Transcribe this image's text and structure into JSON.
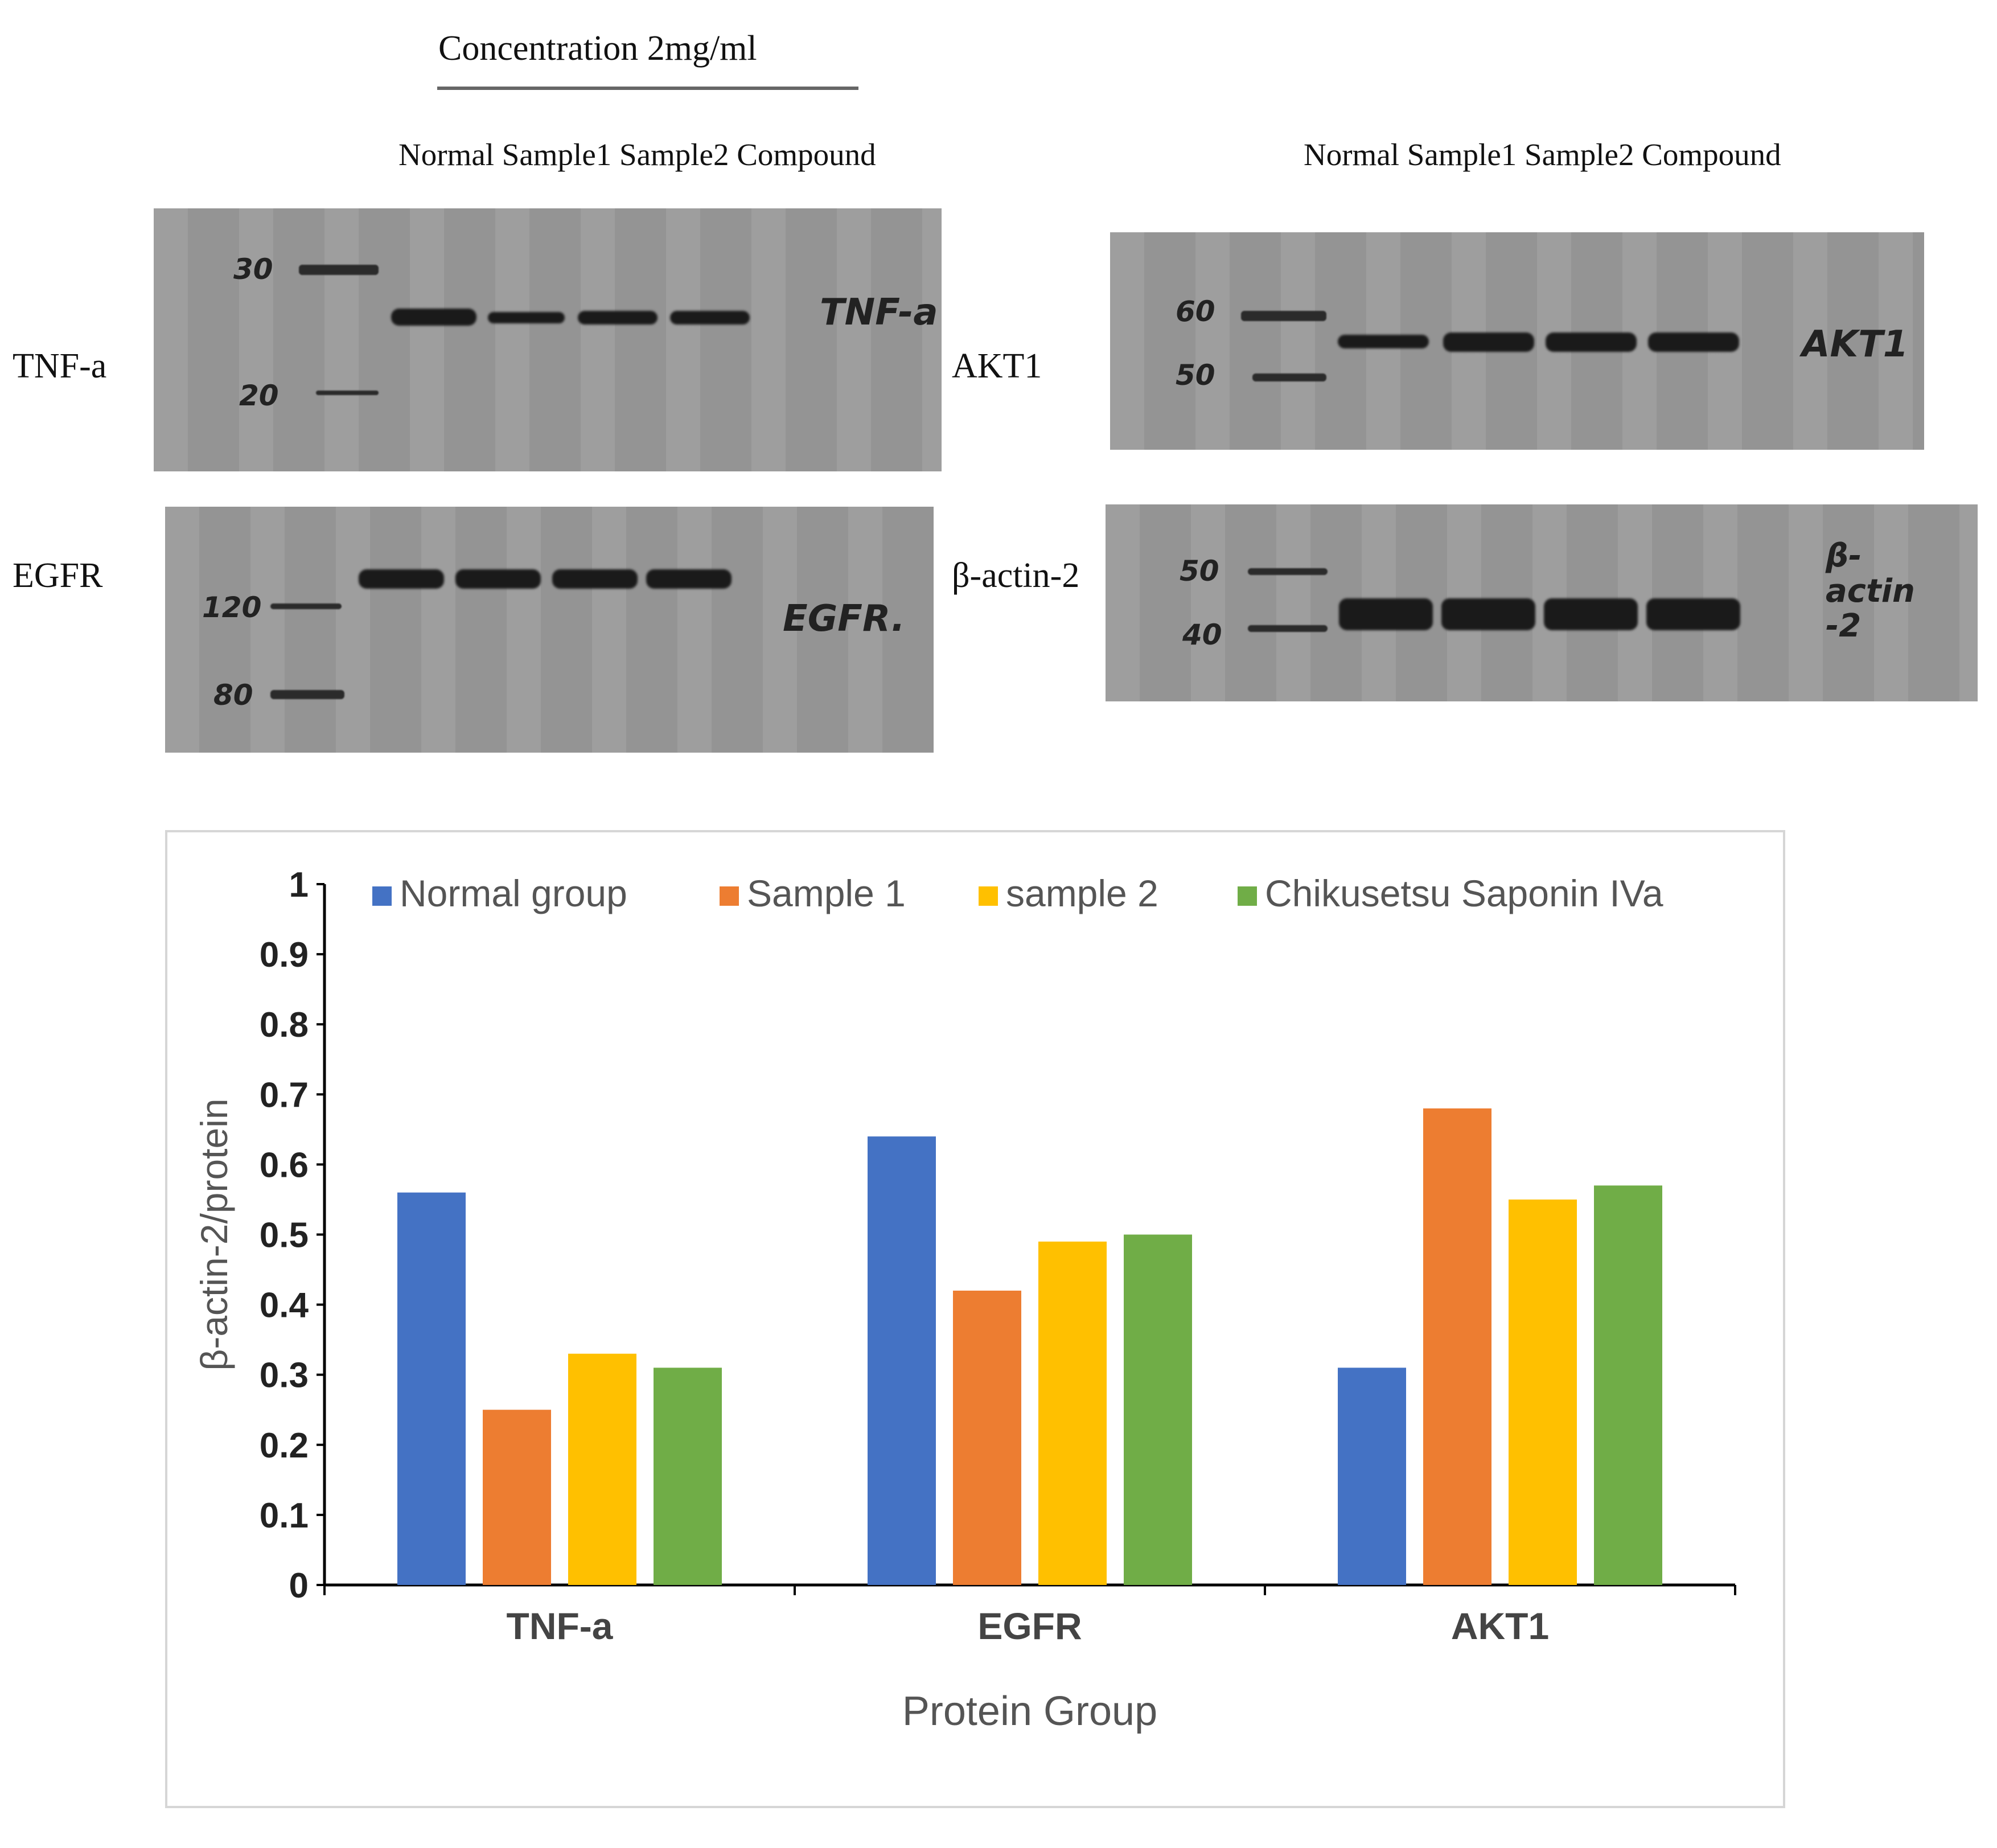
{
  "blot_panel": {
    "concentration_title": "Concentration 2mg/ml",
    "lane_labels_left": "Normal Sample1 Sample2 Compound",
    "lane_labels_right": "Normal Sample1 Sample2 Compound",
    "rows": {
      "tnf": {
        "label": "TNF-a",
        "markers": [
          "30",
          "20"
        ],
        "handwritten": "TNF-a"
      },
      "egfr": {
        "label": "EGFR",
        "markers": [
          "120",
          "80"
        ],
        "handwritten": "EGFR."
      },
      "akt1": {
        "label": "AKT1",
        "markers": [
          "60",
          "50"
        ],
        "handwritten": "AKT1"
      },
      "actin": {
        "label": "β-actin-2",
        "markers": [
          "50",
          "40"
        ],
        "handwritten": "β-actin -2"
      }
    }
  },
  "chart_data": {
    "type": "bar",
    "title": "",
    "xlabel": "Protein Group",
    "ylabel": "β-actin-2/protein",
    "ylim": [
      0,
      1
    ],
    "yticks": [
      "0",
      "0.1",
      "0.2",
      "0.3",
      "0.4",
      "0.5",
      "0.6",
      "0.7",
      "0.8",
      "0.9",
      "1"
    ],
    "categories": [
      "TNF-a",
      "EGFR",
      "AKT1"
    ],
    "series": [
      {
        "name": "Normal group",
        "color": "#4472C4",
        "values": [
          0.56,
          0.64,
          0.31
        ]
      },
      {
        "name": "Sample 1",
        "color": "#ED7D31",
        "values": [
          0.25,
          0.42,
          0.68
        ]
      },
      {
        "name": "sample 2",
        "color": "#FFC000",
        "values": [
          0.33,
          0.49,
          0.55
        ]
      },
      {
        "name": "Chikusetsu Saponin IVa",
        "color": "#70AD47",
        "values": [
          0.31,
          0.5,
          0.57
        ]
      }
    ],
    "grid": false,
    "legend_position": "top"
  }
}
